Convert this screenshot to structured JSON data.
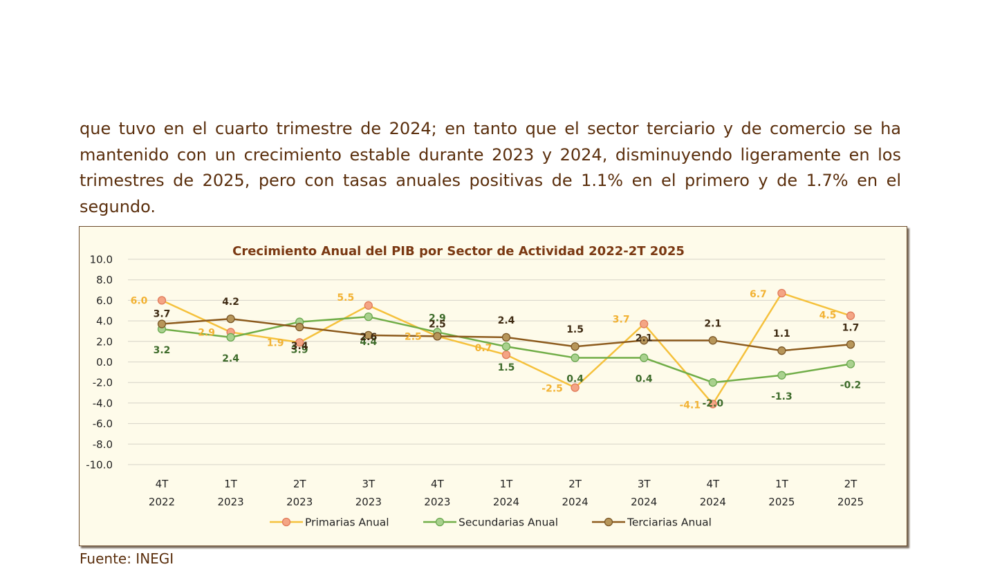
{
  "document": {
    "paragraph": "que tuvo en el cuarto trimestre de 2024; en tanto que el sector terciario y de comercio se ha mantenido con un crecimiento estable durante 2023 y 2024, disminuyendo ligeramente en los trimestres de 2025, pero con tasas anuales positivas de 1.1% en el primero y de 1.7% en el segundo.",
    "source": "Fuente: INEGI"
  },
  "chart_data": {
    "type": "line",
    "title": "Crecimiento Anual del PIB por Sector de Actividad 2022-2T 2025",
    "xlabel": "",
    "ylabel": "",
    "ylim": [
      -10,
      10
    ],
    "yticks": [
      "10.0",
      "8.0",
      "6.0",
      "4.0",
      "2.0",
      "0.0",
      "-2.0",
      "-4.0",
      "-6.0",
      "-8.0",
      "-10.0"
    ],
    "categories": [
      [
        "4T",
        "2022"
      ],
      [
        "1T",
        "2023"
      ],
      [
        "2T",
        "2023"
      ],
      [
        "3T",
        "2023"
      ],
      [
        "4T",
        "2023"
      ],
      [
        "1T",
        "2024"
      ],
      [
        "2T",
        "2024"
      ],
      [
        "3T",
        "2024"
      ],
      [
        "4T",
        "2024"
      ],
      [
        "1T",
        "2025"
      ],
      [
        "2T",
        "2025"
      ]
    ],
    "series": [
      {
        "name": "Primarias Anual",
        "color": "#f5c13c",
        "marker_fill": "#f4a585",
        "marker_stroke": "#e07a5a",
        "label_color": "#f2b233",
        "values": [
          6.0,
          2.9,
          1.9,
          5.5,
          2.5,
          0.7,
          -2.5,
          3.7,
          -4.1,
          6.7,
          4.5
        ]
      },
      {
        "name": "Secundarias Anual",
        "color": "#70ad47",
        "marker_fill": "#a9d18e",
        "marker_stroke": "#6aa84f",
        "label_color": "#3d6b2a",
        "values": [
          3.2,
          2.4,
          3.9,
          4.4,
          2.9,
          1.5,
          0.4,
          0.4,
          -2.0,
          -1.3,
          -0.2
        ]
      },
      {
        "name": "Terciarias Anual",
        "color": "#8c5a1c",
        "marker_fill": "#b7965a",
        "marker_stroke": "#7a5626",
        "label_color": "#3e2a12",
        "values": [
          3.7,
          4.2,
          3.4,
          2.6,
          2.5,
          2.4,
          1.5,
          2.1,
          2.1,
          1.1,
          1.7
        ]
      }
    ],
    "grid": true,
    "legend": "bottom"
  }
}
